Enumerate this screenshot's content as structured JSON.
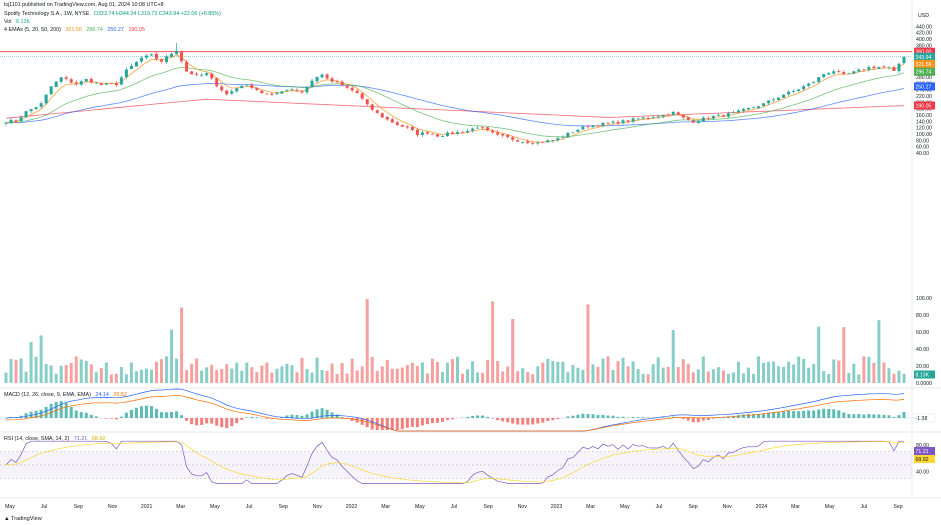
{
  "header": {
    "publisher": "lsj1101 published on TradingView.com, Aug 01, 2024 10:08 UTC+8",
    "symbol": "Spotify Technology S.A., 1W, NYSE",
    "ohlc": "O323.74 H344.34 L319.73 C343.94 +22.06 (+6.85%)",
    "vol_label": "Vol",
    "vol_value": "8.13K",
    "ema_label": "4 EMAs (5, 20, 50, 200)",
    "ema_values": [
      "321.56",
      "296.74",
      "250.27",
      "190.05"
    ],
    "currency": "USD"
  },
  "macd_header": {
    "label": "MACD (12, 26, close, 9, EMA, EMA)",
    "values": [
      "24.14",
      "25.52"
    ]
  },
  "rsi_header": {
    "label": "RSI (14, close, SMA, 14, 2)",
    "values": [
      "71.21",
      "68.92"
    ]
  },
  "footer": {
    "credit": "TradingView"
  },
  "colors": {
    "up": "#26a69a",
    "down": "#ef5350",
    "ema5": "#f7931a",
    "ema20": "#4caf50",
    "ema50": "#2962ff",
    "ema200": "#f23645",
    "resistance": "#f23645",
    "rsi": "#7e57c2",
    "rsi_ma": "#fdd835"
  },
  "chart_data": [
    {
      "type": "candlestick",
      "title": "Spotify Technology S.A., 1W, NYSE",
      "yaxis_ticks": [
        440,
        420,
        400,
        380,
        360,
        340,
        320,
        300,
        280,
        260,
        240,
        220,
        200,
        180,
        160,
        140,
        120,
        100,
        80,
        60,
        40
      ],
      "x_ticks": [
        "May",
        "Jul",
        "Sep",
        "Nov",
        "2021",
        "Mar",
        "May",
        "Jul",
        "Sep",
        "Nov",
        "2022",
        "Mar",
        "May",
        "Jul",
        "Sep",
        "Nov",
        "2023",
        "Mar",
        "May",
        "Jul",
        "Sep",
        "Nov",
        "2024",
        "Mar",
        "May",
        "Jul",
        "Sep"
      ],
      "price_anchors": [
        {
          "t": 0,
          "c": 140
        },
        {
          "t": 2,
          "c": 142
        },
        {
          "t": 4,
          "c": 170
        },
        {
          "t": 7,
          "c": 195
        },
        {
          "t": 9,
          "c": 250
        },
        {
          "t": 11,
          "c": 278
        },
        {
          "t": 14,
          "c": 258
        },
        {
          "t": 16,
          "c": 272
        },
        {
          "t": 19,
          "c": 255
        },
        {
          "t": 22,
          "c": 258
        },
        {
          "t": 24,
          "c": 300
        },
        {
          "t": 27,
          "c": 340
        },
        {
          "t": 29,
          "c": 348
        },
        {
          "t": 31,
          "c": 330
        },
        {
          "t": 33,
          "c": 355
        },
        {
          "t": 34,
          "c": 365
        },
        {
          "t": 36,
          "c": 298
        },
        {
          "t": 38,
          "c": 283
        },
        {
          "t": 40,
          "c": 290
        },
        {
          "t": 42,
          "c": 255
        },
        {
          "t": 44,
          "c": 225
        },
        {
          "t": 47,
          "c": 255
        },
        {
          "t": 49,
          "c": 250
        },
        {
          "t": 51,
          "c": 230
        },
        {
          "t": 53,
          "c": 220
        },
        {
          "t": 55,
          "c": 238
        },
        {
          "t": 57,
          "c": 243
        },
        {
          "t": 59,
          "c": 232
        },
        {
          "t": 61,
          "c": 268
        },
        {
          "t": 63,
          "c": 290
        },
        {
          "t": 64,
          "c": 272
        },
        {
          "t": 66,
          "c": 260
        },
        {
          "t": 68,
          "c": 245
        },
        {
          "t": 70,
          "c": 230
        },
        {
          "t": 72,
          "c": 190
        },
        {
          "t": 74,
          "c": 165
        },
        {
          "t": 76,
          "c": 145
        },
        {
          "t": 78,
          "c": 130
        },
        {
          "t": 80,
          "c": 118
        },
        {
          "t": 82,
          "c": 100
        },
        {
          "t": 84,
          "c": 105
        },
        {
          "t": 86,
          "c": 95
        },
        {
          "t": 88,
          "c": 100
        },
        {
          "t": 90,
          "c": 105
        },
        {
          "t": 92,
          "c": 110
        },
        {
          "t": 94,
          "c": 123
        },
        {
          "t": 96,
          "c": 108
        },
        {
          "t": 98,
          "c": 95
        },
        {
          "t": 100,
          "c": 88
        },
        {
          "t": 102,
          "c": 80
        },
        {
          "t": 104,
          "c": 75
        },
        {
          "t": 106,
          "c": 72
        },
        {
          "t": 108,
          "c": 78
        },
        {
          "t": 110,
          "c": 85
        },
        {
          "t": 112,
          "c": 100
        },
        {
          "t": 114,
          "c": 115
        },
        {
          "t": 116,
          "c": 125
        },
        {
          "t": 118,
          "c": 130
        },
        {
          "t": 120,
          "c": 133
        },
        {
          "t": 122,
          "c": 138
        },
        {
          "t": 124,
          "c": 142
        },
        {
          "t": 126,
          "c": 148
        },
        {
          "t": 128,
          "c": 153
        },
        {
          "t": 130,
          "c": 158
        },
        {
          "t": 132,
          "c": 162
        },
        {
          "t": 133,
          "c": 168
        },
        {
          "t": 135,
          "c": 150
        },
        {
          "t": 137,
          "c": 140
        },
        {
          "t": 139,
          "c": 148
        },
        {
          "t": 141,
          "c": 155
        },
        {
          "t": 143,
          "c": 160
        },
        {
          "t": 145,
          "c": 165
        },
        {
          "t": 147,
          "c": 175
        },
        {
          "t": 149,
          "c": 185
        },
        {
          "t": 151,
          "c": 195
        },
        {
          "t": 153,
          "c": 210
        },
        {
          "t": 155,
          "c": 225
        },
        {
          "t": 157,
          "c": 235
        },
        {
          "t": 159,
          "c": 250
        },
        {
          "t": 161,
          "c": 265
        },
        {
          "t": 163,
          "c": 290
        },
        {
          "t": 165,
          "c": 300
        },
        {
          "t": 167,
          "c": 285
        },
        {
          "t": 169,
          "c": 295
        },
        {
          "t": 171,
          "c": 305
        },
        {
          "t": 172,
          "c": 310
        },
        {
          "t": 174,
          "c": 312
        },
        {
          "t": 176,
          "c": 308
        },
        {
          "t": 177,
          "c": 295
        },
        {
          "t": 178,
          "c": 322
        },
        {
          "t": 179,
          "c": 344
        }
      ],
      "last_price": 343.94,
      "last_price_countdown": "53 19h",
      "resistance_level": 360.0,
      "ema_labels": [
        321.56,
        296.74,
        250.27,
        190.05
      ]
    },
    {
      "type": "bar",
      "title": "Vol",
      "last_value": "8.13K",
      "yaxis_ticks": [
        "100.00",
        "80.00",
        "60.00",
        "40.00",
        "20.00",
        "0.0000"
      ]
    },
    {
      "type": "line",
      "title": "MACD (12, 26, close, 9, EMA, EMA)",
      "last_value": "-1.38"
    },
    {
      "type": "line",
      "title": "RSI (14, close, SMA, 14, 2)",
      "yaxis_ticks": [
        "80.00",
        "60.00",
        "40.00"
      ],
      "last_values": [
        "71.21",
        "68.92"
      ]
    }
  ]
}
